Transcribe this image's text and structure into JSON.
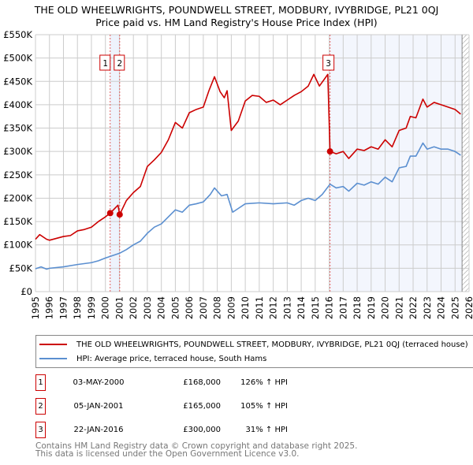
{
  "chart_data": {
    "type": "line",
    "title": "THE OLD WHEELWRIGHTS, POUNDWELL STREET, MODBURY, IVYBRIDGE, PL21 0QJ",
    "subtitle": "Price paid vs. HM Land Registry's House Price Index (HPI)",
    "xlim": [
      1995,
      2026
    ],
    "ylim": [
      0,
      550000
    ],
    "x_ticks": [
      "1995",
      "1996",
      "1997",
      "1998",
      "1999",
      "2000",
      "2001",
      "2002",
      "2003",
      "2004",
      "2005",
      "2006",
      "2007",
      "2008",
      "2009",
      "2010",
      "2011",
      "2012",
      "2013",
      "2014",
      "2015",
      "2016",
      "2017",
      "2018",
      "2019",
      "2020",
      "2021",
      "2022",
      "2023",
      "2024",
      "2025",
      "2026"
    ],
    "y_ticks": [
      {
        "v": 0,
        "label": "£0"
      },
      {
        "v": 50000,
        "label": "£50K"
      },
      {
        "v": 100000,
        "label": "£100K"
      },
      {
        "v": 150000,
        "label": "£150K"
      },
      {
        "v": 200000,
        "label": "£200K"
      },
      {
        "v": 250000,
        "label": "£250K"
      },
      {
        "v": 300000,
        "label": "£300K"
      },
      {
        "v": 350000,
        "label": "£350K"
      },
      {
        "v": 400000,
        "label": "£400K"
      },
      {
        "v": 450000,
        "label": "£450K"
      },
      {
        "v": 500000,
        "label": "£500K"
      },
      {
        "v": 550000,
        "label": "£550K"
      }
    ],
    "grid": true,
    "series": [
      {
        "name": "THE OLD WHEELWRIGHTS, POUNDWELL STREET, MODBURY, IVYBRIDGE, PL21 0QJ (terraced house)",
        "color": "#cc0000",
        "points": [
          [
            1995,
            112000
          ],
          [
            1995.3,
            122000
          ],
          [
            1995.8,
            112000
          ],
          [
            1996,
            110000
          ],
          [
            1997,
            118000
          ],
          [
            1997.5,
            120000
          ],
          [
            1998,
            130000
          ],
          [
            1998.5,
            133000
          ],
          [
            1999,
            138000
          ],
          [
            1999.5,
            150000
          ],
          [
            2000,
            160000
          ],
          [
            2000.34,
            168000
          ],
          [
            2000.9,
            185000
          ],
          [
            2001.02,
            165000
          ],
          [
            2001.5,
            195000
          ],
          [
            2002,
            212000
          ],
          [
            2002.5,
            225000
          ],
          [
            2003,
            268000
          ],
          [
            2003.5,
            282000
          ],
          [
            2004,
            298000
          ],
          [
            2004.5,
            325000
          ],
          [
            2005,
            362000
          ],
          [
            2005.5,
            350000
          ],
          [
            2006,
            383000
          ],
          [
            2006.5,
            390000
          ],
          [
            2007,
            395000
          ],
          [
            2007.4,
            430000
          ],
          [
            2007.8,
            460000
          ],
          [
            2008.2,
            428000
          ],
          [
            2008.5,
            415000
          ],
          [
            2008.7,
            430000
          ],
          [
            2009,
            345000
          ],
          [
            2009.5,
            365000
          ],
          [
            2010,
            408000
          ],
          [
            2010.5,
            420000
          ],
          [
            2011,
            418000
          ],
          [
            2011.5,
            405000
          ],
          [
            2012,
            410000
          ],
          [
            2012.5,
            400000
          ],
          [
            2013,
            410000
          ],
          [
            2013.5,
            420000
          ],
          [
            2014,
            428000
          ],
          [
            2014.5,
            440000
          ],
          [
            2014.9,
            465000
          ],
          [
            2015.3,
            440000
          ],
          [
            2015.9,
            465000
          ],
          [
            2016.06,
            300000
          ],
          [
            2016.5,
            295000
          ],
          [
            2017,
            300000
          ],
          [
            2017.4,
            285000
          ],
          [
            2018,
            305000
          ],
          [
            2018.5,
            302000
          ],
          [
            2019,
            310000
          ],
          [
            2019.5,
            305000
          ],
          [
            2020,
            325000
          ],
          [
            2020.5,
            310000
          ],
          [
            2021,
            345000
          ],
          [
            2021.5,
            350000
          ],
          [
            2021.8,
            375000
          ],
          [
            2022.2,
            372000
          ],
          [
            2022.7,
            412000
          ],
          [
            2023,
            395000
          ],
          [
            2023.5,
            405000
          ],
          [
            2024,
            400000
          ],
          [
            2024.5,
            395000
          ],
          [
            2025,
            390000
          ],
          [
            2025.4,
            380000
          ]
        ]
      },
      {
        "name": "HPI: Average price, terraced house, South Hams",
        "color": "#5b8fd0",
        "points": [
          [
            1995,
            49000
          ],
          [
            1995.4,
            53000
          ],
          [
            1995.8,
            48000
          ],
          [
            1996,
            50000
          ],
          [
            1997,
            53000
          ],
          [
            1998,
            58000
          ],
          [
            1999,
            62000
          ],
          [
            1999.5,
            66000
          ],
          [
            2000,
            72000
          ],
          [
            2000.5,
            77000
          ],
          [
            2001,
            82000
          ],
          [
            2001.5,
            90000
          ],
          [
            2002,
            100000
          ],
          [
            2002.5,
            108000
          ],
          [
            2003,
            125000
          ],
          [
            2003.5,
            138000
          ],
          [
            2004,
            145000
          ],
          [
            2004.5,
            160000
          ],
          [
            2005,
            175000
          ],
          [
            2005.5,
            170000
          ],
          [
            2006,
            185000
          ],
          [
            2006.5,
            188000
          ],
          [
            2007,
            192000
          ],
          [
            2007.5,
            208000
          ],
          [
            2007.8,
            222000
          ],
          [
            2008.3,
            205000
          ],
          [
            2008.7,
            208000
          ],
          [
            2009.1,
            170000
          ],
          [
            2009.5,
            178000
          ],
          [
            2010,
            188000
          ],
          [
            2011,
            190000
          ],
          [
            2012,
            188000
          ],
          [
            2013,
            190000
          ],
          [
            2013.5,
            185000
          ],
          [
            2014,
            195000
          ],
          [
            2014.5,
            200000
          ],
          [
            2015,
            195000
          ],
          [
            2015.5,
            208000
          ],
          [
            2016.06,
            230000
          ],
          [
            2016.5,
            222000
          ],
          [
            2017,
            225000
          ],
          [
            2017.4,
            215000
          ],
          [
            2018,
            232000
          ],
          [
            2018.5,
            228000
          ],
          [
            2019,
            235000
          ],
          [
            2019.5,
            230000
          ],
          [
            2020,
            245000
          ],
          [
            2020.5,
            235000
          ],
          [
            2021,
            265000
          ],
          [
            2021.5,
            268000
          ],
          [
            2021.8,
            290000
          ],
          [
            2022.2,
            290000
          ],
          [
            2022.7,
            318000
          ],
          [
            2023,
            305000
          ],
          [
            2023.5,
            310000
          ],
          [
            2024,
            305000
          ],
          [
            2024.5,
            305000
          ],
          [
            2025,
            300000
          ],
          [
            2025.4,
            292000
          ]
        ]
      }
    ],
    "sales": [
      {
        "id": "1",
        "x": 2000.34,
        "y": 168000,
        "date": "03-MAY-2000",
        "price": "£168,000",
        "hpi": "126% ↑ HPI"
      },
      {
        "id": "2",
        "x": 2001.02,
        "y": 165000,
        "date": "05-JAN-2001",
        "price": "£165,000",
        "hpi": "105% ↑ HPI"
      },
      {
        "id": "3",
        "x": 2016.06,
        "y": 300000,
        "date": "22-JAN-2016",
        "price": "£300,000",
        "hpi": "31% ↑ HPI"
      }
    ],
    "data_end": 2025.5,
    "legend_position": "below"
  },
  "footer": {
    "line1": "Contains HM Land Registry data © Crown copyright and database right 2025.",
    "line2": "This data is licensed under the Open Government Licence v3.0."
  },
  "legend": {
    "red": "THE OLD WHEELWRIGHTS, POUNDWELL STREET, MODBURY, IVYBRIDGE, PL21 0QJ (terraced house)",
    "blue": "HPI: Average price, terraced house, South Hams"
  }
}
